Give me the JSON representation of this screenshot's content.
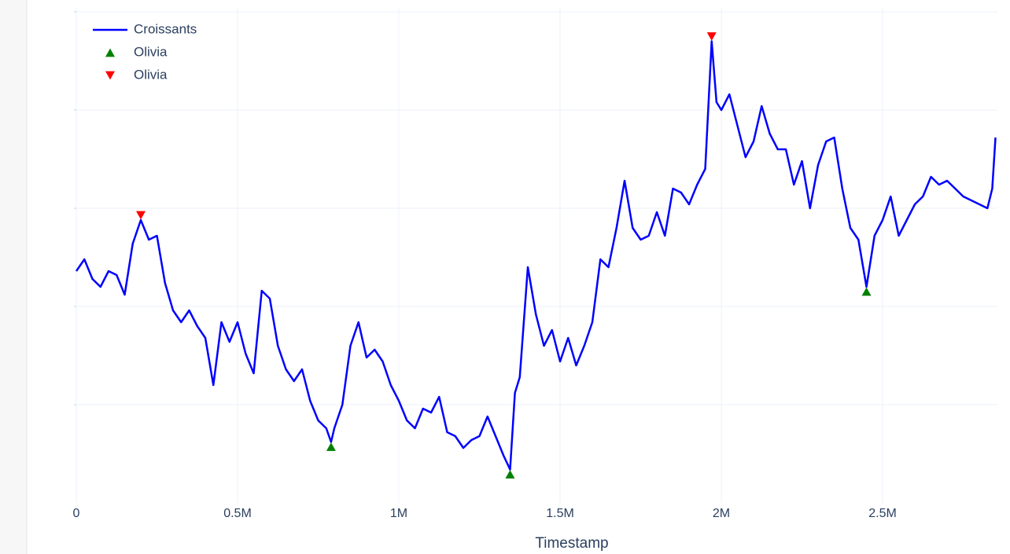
{
  "chart_data": {
    "type": "line",
    "x_label": "Timestamp",
    "xlim": [
      0,
      2856000
    ],
    "ylim": [
      0,
      5.04
    ],
    "xticks": [
      {
        "value": 0,
        "label": "0"
      },
      {
        "value": 500000,
        "label": "0.5M"
      },
      {
        "value": 1000000,
        "label": "1M"
      },
      {
        "value": 1500000,
        "label": "1.5M"
      },
      {
        "value": 2000000,
        "label": "2M"
      },
      {
        "value": 2500000,
        "label": "2.5M"
      }
    ],
    "yticks": [
      1,
      2,
      3,
      4,
      5
    ],
    "grid": true,
    "legend": "top-left",
    "series": [
      {
        "name": "Croissants",
        "color": "#0000ff",
        "mode": "lines",
        "x": [
          0,
          25000,
          50000,
          75000,
          100000,
          125000,
          150000,
          175000,
          200000,
          225000,
          250000,
          275000,
          300000,
          325000,
          350000,
          375000,
          400000,
          425000,
          450000,
          475000,
          500000,
          525000,
          550000,
          575000,
          600000,
          625000,
          650000,
          675000,
          700000,
          725000,
          750000,
          775000,
          790000,
          800000,
          825000,
          850000,
          875000,
          900000,
          925000,
          950000,
          975000,
          1000000,
          1025000,
          1050000,
          1075000,
          1100000,
          1125000,
          1150000,
          1175000,
          1200000,
          1225000,
          1250000,
          1275000,
          1300000,
          1325000,
          1345000,
          1360000,
          1375000,
          1400000,
          1425000,
          1450000,
          1475000,
          1500000,
          1525000,
          1550000,
          1575000,
          1600000,
          1625000,
          1650000,
          1675000,
          1700000,
          1725000,
          1750000,
          1775000,
          1800000,
          1825000,
          1850000,
          1875000,
          1900000,
          1925000,
          1950000,
          1970000,
          1985000,
          2000000,
          2025000,
          2050000,
          2075000,
          2100000,
          2125000,
          2150000,
          2175000,
          2200000,
          2225000,
          2250000,
          2275000,
          2300000,
          2325000,
          2350000,
          2375000,
          2400000,
          2425000,
          2450000,
          2475000,
          2500000,
          2525000,
          2550000,
          2575000,
          2600000,
          2625000,
          2650000,
          2675000,
          2700000,
          2725000,
          2750000,
          2775000,
          2800000,
          2825000,
          2840000,
          2850000
        ],
        "values": [
          2.36,
          2.48,
          2.28,
          2.2,
          2.36,
          2.32,
          2.12,
          2.64,
          2.88,
          2.68,
          2.72,
          2.24,
          1.96,
          1.84,
          1.96,
          1.8,
          1.68,
          1.2,
          1.84,
          1.64,
          1.84,
          1.52,
          1.32,
          2.16,
          2.08,
          1.6,
          1.36,
          1.24,
          1.36,
          1.04,
          0.84,
          0.76,
          0.62,
          0.76,
          1.0,
          1.6,
          1.84,
          1.48,
          1.56,
          1.44,
          1.2,
          1.04,
          0.84,
          0.76,
          0.96,
          0.92,
          1.08,
          0.72,
          0.68,
          0.56,
          0.64,
          0.68,
          0.88,
          0.68,
          0.48,
          0.34,
          1.12,
          1.28,
          2.4,
          1.92,
          1.6,
          1.76,
          1.44,
          1.68,
          1.4,
          1.6,
          1.84,
          2.48,
          2.4,
          2.8,
          3.28,
          2.8,
          2.68,
          2.72,
          2.96,
          2.72,
          3.2,
          3.16,
          3.04,
          3.24,
          3.4,
          4.7,
          4.08,
          4.0,
          4.16,
          3.84,
          3.52,
          3.68,
          4.04,
          3.76,
          3.6,
          3.6,
          3.24,
          3.48,
          3.0,
          3.44,
          3.68,
          3.72,
          3.2,
          2.8,
          2.68,
          2.2,
          2.72,
          2.88,
          3.12,
          2.72,
          2.88,
          3.04,
          3.12,
          3.32,
          3.24,
          3.28,
          3.2,
          3.12,
          3.08,
          3.04,
          3.0,
          3.2,
          3.72
        ]
      },
      {
        "name": "Olivia",
        "color": "#008000",
        "mode": "markers",
        "marker": "triangle-up",
        "x": [
          790000,
          1345000,
          2450000
        ],
        "values": [
          0.62,
          0.34,
          2.2
        ]
      },
      {
        "name": "Olivia",
        "color": "#ff0000",
        "mode": "markers",
        "marker": "triangle-down",
        "x": [
          200000,
          1970000
        ],
        "values": [
          2.88,
          4.7
        ]
      }
    ]
  }
}
